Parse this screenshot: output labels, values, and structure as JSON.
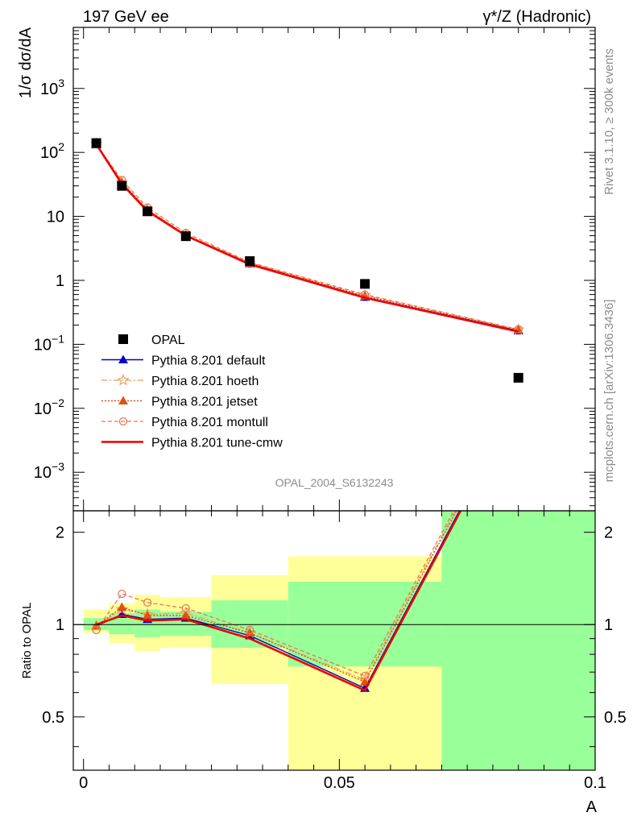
{
  "header": {
    "left": "197 GeV ee",
    "right": "γ*/Z (Hadronic)"
  },
  "side_labels": {
    "top": "Rivet 3.1.10, ≥ 300k events",
    "bottom": "mcplots.cern.ch [arXiv:1306.3436]"
  },
  "watermark": "OPAL_2004_S6132243",
  "colors": {
    "opal": "#000000",
    "default": "#0000cc",
    "hoeth": "#e8a060",
    "jetset": "#e05010",
    "montull": "#e87858",
    "tune_cmw": "#ee0000",
    "band_inner": "#99ff99",
    "band_outer": "#ffff99"
  },
  "chart_data": [
    {
      "type": "scatter",
      "panel": "main",
      "ylabel": "1/σ dσ/dA",
      "yscale": "log",
      "ylim": [
        0.00025,
        9000
      ],
      "xlim": [
        -0.002,
        0.1
      ],
      "ytick_labels": [
        {
          "value": 0.001,
          "mant": "10",
          "exp": "−3"
        },
        {
          "value": 0.01,
          "mant": "10",
          "exp": "−2"
        },
        {
          "value": 0.1,
          "mant": "10",
          "exp": "−1"
        },
        {
          "value": 1,
          "mant": "1",
          "exp": ""
        },
        {
          "value": 10,
          "mant": "10",
          "exp": ""
        },
        {
          "value": 100,
          "mant": "10",
          "exp": "2"
        },
        {
          "value": 1000,
          "mant": "10",
          "exp": "3"
        }
      ],
      "legend_position": "lower-left",
      "series": [
        {
          "name": "OPAL",
          "key": "opal",
          "style": "data",
          "x": [
            0.0025,
            0.0075,
            0.0125,
            0.02,
            0.0325,
            0.055,
            0.085
          ],
          "y": [
            140,
            30,
            12,
            4.9,
            2.0,
            0.88,
            0.03
          ]
        },
        {
          "name": "Pythia 8.201 default",
          "key": "default",
          "style": "line-tri",
          "x": [
            0.0025,
            0.0075,
            0.0125,
            0.02,
            0.0325,
            0.055,
            0.085
          ],
          "y": [
            132,
            32,
            12.2,
            5.0,
            1.82,
            0.545,
            0.163
          ]
        },
        {
          "name": "Pythia 8.201 hoeth",
          "key": "hoeth",
          "style": "dashdot-star",
          "x": [
            0.0025,
            0.0075,
            0.0125,
            0.02,
            0.0325,
            0.055,
            0.085
          ],
          "y": [
            136,
            34,
            12.8,
            5.2,
            1.88,
            0.58,
            0.17
          ]
        },
        {
          "name": "Pythia 8.201 jetset",
          "key": "jetset",
          "style": "dot-tri",
          "x": [
            0.0025,
            0.0075,
            0.0125,
            0.02,
            0.0325,
            0.055,
            0.085
          ],
          "y": [
            138,
            34,
            12.7,
            5.1,
            1.86,
            0.57,
            0.168
          ]
        },
        {
          "name": "Pythia 8.201 montull",
          "key": "montull",
          "style": "dash-circle",
          "x": [
            0.0025,
            0.0075,
            0.0125,
            0.02,
            0.0325,
            0.055,
            0.085
          ],
          "y": [
            133,
            37,
            13.8,
            5.5,
            1.92,
            0.6,
            0.172
          ]
        },
        {
          "name": "Pythia 8.201 tune-cmw",
          "key": "tune_cmw",
          "style": "line",
          "x": [
            0.0025,
            0.0075,
            0.0125,
            0.02,
            0.0325,
            0.055,
            0.085
          ],
          "y": [
            134,
            32,
            12.1,
            5.0,
            1.78,
            0.535,
            0.158
          ]
        }
      ]
    },
    {
      "type": "line",
      "panel": "ratio",
      "ylabel": "Ratio to OPAL",
      "xlabel": "A",
      "yscale": "log",
      "ylim": [
        0.335,
        2.35
      ],
      "xlim": [
        -0.002,
        0.1
      ],
      "ytick_labels": [
        0.5,
        1,
        2
      ],
      "xticks": [
        0,
        0.05,
        0.1
      ],
      "xtick_labels": [
        "0",
        "0.05",
        "0.1"
      ],
      "reference_line": 1,
      "bands": [
        {
          "x0": 0,
          "x1": 0.005,
          "inner": [
            0.96,
            1.05
          ],
          "outer": [
            0.94,
            1.12
          ]
        },
        {
          "x0": 0.005,
          "x1": 0.01,
          "inner": [
            0.93,
            1.09
          ],
          "outer": [
            0.87,
            1.17
          ]
        },
        {
          "x0": 0.01,
          "x1": 0.015,
          "inner": [
            0.91,
            1.12
          ],
          "outer": [
            0.82,
            1.25
          ]
        },
        {
          "x0": 0.015,
          "x1": 0.025,
          "inner": [
            0.92,
            1.1
          ],
          "outer": [
            0.84,
            1.23
          ]
        },
        {
          "x0": 0.025,
          "x1": 0.04,
          "inner": [
            0.84,
            1.2
          ],
          "outer": [
            0.64,
            1.45
          ]
        },
        {
          "x0": 0.04,
          "x1": 0.07,
          "inner": [
            0.73,
            1.38
          ],
          "outer": [
            0.335,
            1.67
          ]
        },
        {
          "x0": 0.07,
          "x1": 0.1,
          "inner": [
            0.335,
            2.35
          ],
          "outer": [
            0.335,
            2.35
          ]
        }
      ],
      "series": [
        {
          "key": "default",
          "style": "line-tri",
          "x": [
            0.0025,
            0.0075,
            0.0125,
            0.02,
            0.0325,
            0.055,
            0.085
          ],
          "y": [
            0.99,
            1.08,
            1.04,
            1.05,
            0.92,
            0.62,
            5.4
          ]
        },
        {
          "key": "hoeth",
          "style": "dashdot-star",
          "x": [
            0.0025,
            0.0075,
            0.0125,
            0.02,
            0.0325,
            0.055,
            0.085
          ],
          "y": [
            0.99,
            1.12,
            1.08,
            1.09,
            0.94,
            0.66,
            5.7
          ]
        },
        {
          "key": "jetset",
          "style": "dot-tri",
          "x": [
            0.0025,
            0.0075,
            0.0125,
            0.02,
            0.0325,
            0.055,
            0.085
          ],
          "y": [
            0.99,
            1.14,
            1.07,
            1.07,
            0.94,
            0.65,
            5.6
          ]
        },
        {
          "key": "montull",
          "style": "dash-circle",
          "x": [
            0.0025,
            0.0075,
            0.0125,
            0.02,
            0.0325,
            0.055,
            0.085
          ],
          "y": [
            0.96,
            1.26,
            1.18,
            1.13,
            0.96,
            0.68,
            5.8
          ]
        },
        {
          "key": "tune_cmw",
          "style": "line",
          "x": [
            0.0025,
            0.0075,
            0.0125,
            0.02,
            0.0325,
            0.055,
            0.085
          ],
          "y": [
            1.0,
            1.07,
            1.03,
            1.04,
            0.9,
            0.61,
            5.3
          ]
        }
      ]
    }
  ]
}
